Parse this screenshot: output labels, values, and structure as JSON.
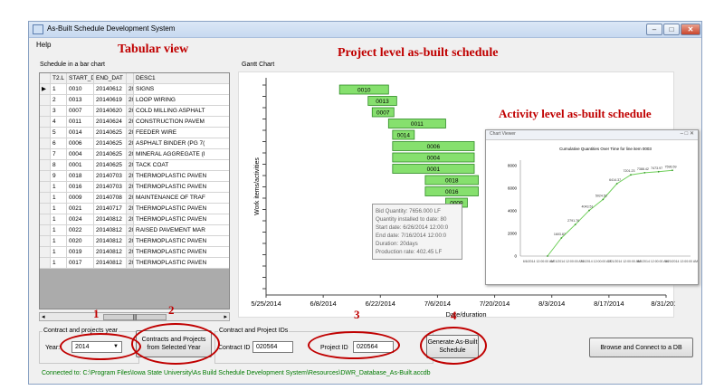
{
  "window": {
    "title": "As-Built Schedule Development System",
    "min": "–",
    "max": "□",
    "close": "✕"
  },
  "menu": {
    "help": "Help"
  },
  "grid": {
    "label": "Schedule in a bar chart",
    "columns": [
      "",
      "T2.L",
      "START_D.",
      "END_DAT",
      "",
      "DESC1"
    ],
    "rows": [
      [
        "▶",
        "1",
        "0010",
        "20140612",
        "20140624",
        "SIGNS"
      ],
      [
        "",
        "2",
        "0013",
        "20140619",
        "20140626",
        "LOOP WIRING"
      ],
      [
        "",
        "3",
        "0007",
        "20140620",
        "20140620",
        "COLD MILLING ASPHALT"
      ],
      [
        "",
        "4",
        "0011",
        "20140624",
        "20140708",
        "CONSTRUCTION PAVEM"
      ],
      [
        "",
        "5",
        "0014",
        "20140625",
        "20140625",
        "FEEDER WIRE"
      ],
      [
        "",
        "6",
        "0006",
        "20140625",
        "20140715",
        "ASPHALT BINDER (PG 7("
      ],
      [
        "",
        "7",
        "0004",
        "20140625",
        "20140715",
        "MINERAL AGGREGATE (I"
      ],
      [
        "",
        "8",
        "0001",
        "20140625",
        "20140715",
        "TACK COAT"
      ],
      [
        "",
        "9",
        "0018",
        "20140703",
        "20140716",
        "THERMOPLASTIC PAVEN"
      ],
      [
        "",
        "1",
        "0016",
        "20140703",
        "20140716",
        "THERMOPLASTIC PAVEN"
      ],
      [
        "",
        "1",
        "0009",
        "20140708",
        "20140708",
        "MAINTENANCE OF TRAF"
      ],
      [
        "",
        "1",
        "0021",
        "20140717",
        "20140717",
        "THERMOPLASTIC PAVEN"
      ],
      [
        "",
        "1",
        "0024",
        "20140812",
        "20140812",
        "THERMOPLASTIC PAVEN"
      ],
      [
        "",
        "1",
        "0022",
        "20140812",
        "20140812",
        "RAISED PAVEMENT MAR"
      ],
      [
        "",
        "1",
        "0020",
        "20140812",
        "20140812",
        "THERMOPLASTIC PAVEN"
      ],
      [
        "",
        "1",
        "0019",
        "20140812",
        "20140812",
        "THERMOPLASTIC PAVEN"
      ],
      [
        "",
        "1",
        "0017",
        "20140812",
        "20140812",
        "THERMOPLASTIC PAVEN"
      ]
    ],
    "scroll_left": "◂",
    "scroll_right": "▸",
    "scroll_thumb": "|||"
  },
  "gantt": {
    "label": "Gantt Chart",
    "ylabel": "Work items/activities",
    "xlabel": "Date/duration",
    "xticks": [
      "5/25/2014",
      "6/8/2014",
      "6/22/2014",
      "7/6/2014",
      "7/20/2014",
      "8/3/2014",
      "8/17/2014",
      "8/31/2014"
    ],
    "bars": [
      {
        "label": "0010",
        "start": "2014-06-12",
        "end": "2014-06-24"
      },
      {
        "label": "0013",
        "start": "2014-06-19",
        "end": "2014-06-26"
      },
      {
        "label": "0007",
        "start": "2014-06-20",
        "end": "2014-06-20"
      },
      {
        "label": "0011",
        "start": "2014-06-24",
        "end": "2014-07-08"
      },
      {
        "label": "0014",
        "start": "2014-06-25",
        "end": "2014-06-25"
      },
      {
        "label": "0006",
        "start": "2014-06-25",
        "end": "2014-07-15"
      },
      {
        "label": "0004",
        "start": "2014-06-25",
        "end": "2014-07-15"
      },
      {
        "label": "0001",
        "start": "2014-06-25",
        "end": "2014-07-15"
      },
      {
        "label": "0018",
        "start": "2014-07-03",
        "end": "2014-07-16"
      },
      {
        "label": "0016",
        "start": "2014-07-03",
        "end": "2014-07-16"
      },
      {
        "label": "0009",
        "start": "2014-07-08",
        "end": "2014-07-08"
      }
    ],
    "tooltip": [
      "Bid Quantity: 7656.000 LF",
      "Quantity installed to date: 80",
      "Start date: 6/26/2014 12:00:0",
      "End date: 7/16/2014 12:00:0",
      "Duration: 20days",
      "Production rate: 402.45 LF"
    ]
  },
  "inset": {
    "window_title": "Chart Viewer",
    "title": "Cumulative Quantities Over Time for line item 0003",
    "chart_data": {
      "type": "line",
      "yticks": [
        "0",
        "2000",
        "4000",
        "6000",
        "8000"
      ],
      "ylim": [
        0,
        8500
      ],
      "point_labels": [
        "1603.87",
        "2791.76",
        "4043.51",
        "5024.52",
        "6414.37",
        "7201.23",
        "7388.42",
        "7473.97",
        "7596.59"
      ],
      "points": [
        {
          "x": "6/26/2014",
          "y": 0
        },
        {
          "x": "6/28/2014",
          "y": 1603.87
        },
        {
          "x": "6/30/2014",
          "y": 2791.76
        },
        {
          "x": "7/2/2014",
          "y": 4043.51
        },
        {
          "x": "7/4/2014",
          "y": 5024.52
        },
        {
          "x": "7/6/2014",
          "y": 6414.37
        },
        {
          "x": "7/9/2014",
          "y": 7201.23
        },
        {
          "x": "7/12/2014",
          "y": 7388.42
        },
        {
          "x": "7/14/2014",
          "y": 7473.97
        },
        {
          "x": "7/16/2014",
          "y": 7596.59
        }
      ],
      "xticks": [
        "6/6/2014 12:00:00 AM",
        "6/21/2014 12:00:00 AM",
        "7/6/2014 12:00:00 AM",
        "7/21/2014 12:00:00 AM",
        "8/5/2014 12:00:00 AM",
        "8/20/2014 12:00:00 AM"
      ]
    }
  },
  "controls": {
    "contract_year_group": "Contract and projects year",
    "year_label": "Year:",
    "year_value": "2014",
    "contracts_button": "Contracts and Projects from Selected Year",
    "ids_group": "Contract and Project IDs",
    "contract_id_label": "Contract ID",
    "contract_id_value": "020564",
    "project_id_label": "Project ID",
    "project_id_value": "020564",
    "generate_button": "Generate As-Built Schedule",
    "browse_button": "Browse and Connect to a DB"
  },
  "status": "Connected to: C:\\Program Files\\Iowa State University\\As Build Schedule Development System\\Resources\\DWR_Database_As-Built.accdb",
  "annotations": {
    "tabular": "Tabular view",
    "project": "Project level as-built schedule",
    "activity": "Activity level as-built schedule",
    "n1": "1",
    "n2": "2",
    "n3": "3",
    "n4": "4"
  },
  "colors": {
    "bar_fill": "#86e06e",
    "annotation": "#c00000",
    "status": "#007a00"
  }
}
